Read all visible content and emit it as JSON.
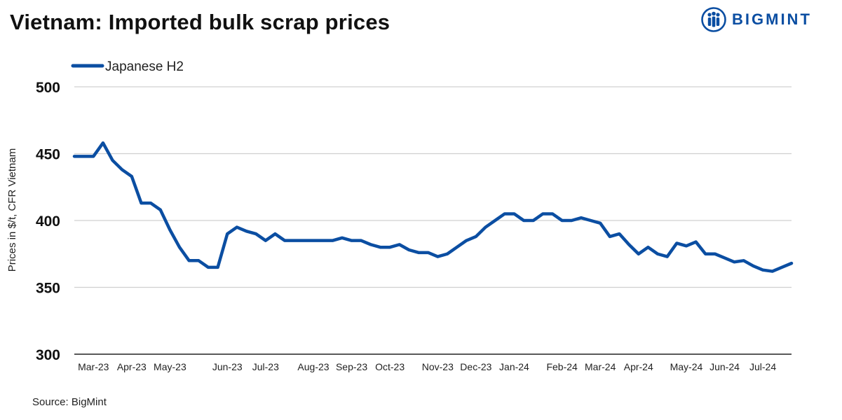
{
  "title": "Vietnam: Imported bulk scrap prices",
  "brand": {
    "name": "BIGMINT",
    "color": "#0B4EA2",
    "logo_icon": "people-group-logo-icon"
  },
  "source": "Source: BigMint",
  "colors": {
    "series": "#0B4EA2",
    "grid": "#D0D0D0",
    "axis": "#222222"
  },
  "chart_data": {
    "type": "line",
    "title": "Vietnam: Imported bulk scrap prices",
    "xlabel": "",
    "ylabel": "Prices in $/t, CFR Vietnam",
    "ylim": [
      300,
      500
    ],
    "yticks": [
      300,
      350,
      400,
      450,
      500
    ],
    "grid": true,
    "legend_position": "top-left",
    "x_tick_labels": [
      "Mar-23",
      "Apr-23",
      "May-23",
      "Jun-23",
      "Jul-23",
      "Aug-23",
      "Sep-23",
      "Oct-23",
      "Nov-23",
      "Dec-23",
      "Jan-24",
      "Feb-24",
      "Mar-24",
      "Apr-24",
      "May-24",
      "Jun-24",
      "Jul-24"
    ],
    "x_tick_index": [
      2,
      6,
      10,
      16,
      20,
      25,
      29,
      33,
      38,
      42,
      46,
      51,
      55,
      59,
      64,
      68,
      72
    ],
    "series": [
      {
        "name": "Japanese H2",
        "color": "#0B4EA2",
        "values": [
          448,
          448,
          448,
          458,
          445,
          438,
          433,
          413,
          413,
          408,
          393,
          380,
          370,
          370,
          365,
          365,
          390,
          395,
          392,
          390,
          385,
          390,
          385,
          385,
          385,
          385,
          385,
          385,
          387,
          385,
          385,
          382,
          380,
          380,
          382,
          378,
          376,
          376,
          373,
          375,
          380,
          385,
          388,
          395,
          400,
          405,
          405,
          400,
          400,
          405,
          405,
          400,
          400,
          402,
          400,
          398,
          388,
          390,
          382,
          375,
          380,
          375,
          373,
          383,
          381,
          384,
          375,
          375,
          372,
          369,
          370,
          366,
          363,
          362,
          365,
          368
        ]
      }
    ]
  }
}
